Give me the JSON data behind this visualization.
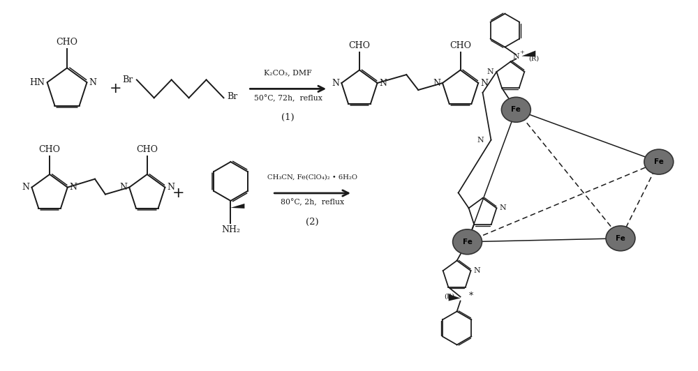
{
  "bg_color": "#ffffff",
  "line_color": "#1a1a1a",
  "fe_color_face": "#707070",
  "fe_color_edge": "#333333",
  "figsize": [
    10.0,
    5.32
  ],
  "dpi": 100,
  "rxn1_top": "K₂CO₃, DMF",
  "rxn1_bot": "50°C, 72h,  reflux",
  "rxn1_num": "(1)",
  "rxn2_top": "CH₃CN, Fe(ClO₄)₂ • 6H₂O",
  "rxn2_bot": "80°C, 2h,  reflux",
  "rxn2_num": "(2)",
  "xlim": [
    0,
    10
  ],
  "ylim": [
    0,
    5.32
  ]
}
